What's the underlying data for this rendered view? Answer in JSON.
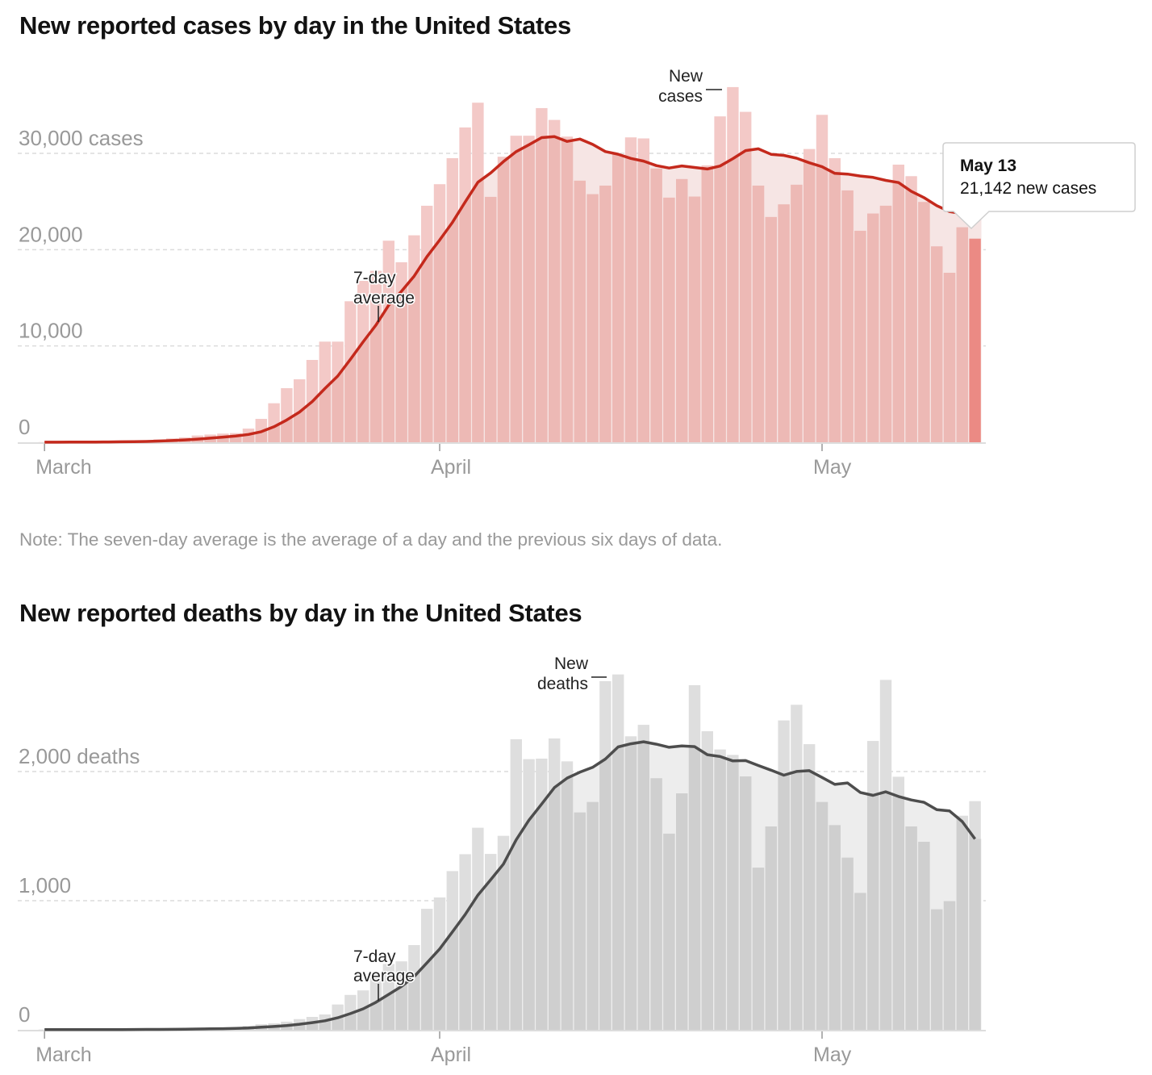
{
  "cases_chart": {
    "title": "New reported cases by day in the United States",
    "note": "Note: The seven-day average is the average of a day and the previous six days of data.",
    "annotations": {
      "bars": [
        "New",
        "cases"
      ],
      "average": [
        "7-day",
        "average"
      ]
    },
    "tooltip": {
      "date": "May 13",
      "value": "21,142 new cases"
    }
  },
  "deaths_chart": {
    "title": "New reported deaths by day in the United States",
    "annotations": {
      "bars": [
        "New",
        "deaths"
      ],
      "average": [
        "7-day",
        "average"
      ]
    }
  },
  "chart_data": [
    {
      "type": "bar",
      "title": "New reported cases by day in the United States",
      "series_line": "7-day average",
      "ylim": [
        0,
        37000
      ],
      "grid": true,
      "yticks": [
        0,
        10000,
        20000,
        30000
      ],
      "ytick_labels": [
        "0",
        "10,000",
        "20,000",
        "30,000 cases"
      ],
      "xtick_labels": [
        "March",
        "April",
        "May"
      ],
      "xtick_dates": [
        "Mar 1",
        "Apr 1",
        "May 1"
      ],
      "highlight": "May 13",
      "colors": {
        "bar": "#f3c9c7",
        "bar_under_avg": "#edb9b5",
        "avg_area": "#f6e5e4",
        "line": "#c4291c",
        "highlight": "#eb8a84"
      },
      "x": [
        "Mar 1",
        "Mar 2",
        "Mar 3",
        "Mar 4",
        "Mar 5",
        "Mar 6",
        "Mar 7",
        "Mar 8",
        "Mar 9",
        "Mar 10",
        "Mar 11",
        "Mar 12",
        "Mar 13",
        "Mar 14",
        "Mar 15",
        "Mar 16",
        "Mar 17",
        "Mar 18",
        "Mar 19",
        "Mar 20",
        "Mar 21",
        "Mar 22",
        "Mar 23",
        "Mar 24",
        "Mar 25",
        "Mar 26",
        "Mar 27",
        "Mar 28",
        "Mar 29",
        "Mar 30",
        "Mar 31",
        "Apr 1",
        "Apr 2",
        "Apr 3",
        "Apr 4",
        "Apr 5",
        "Apr 6",
        "Apr 7",
        "Apr 8",
        "Apr 9",
        "Apr 10",
        "Apr 11",
        "Apr 12",
        "Apr 13",
        "Apr 14",
        "Apr 15",
        "Apr 16",
        "Apr 17",
        "Apr 18",
        "Apr 19",
        "Apr 20",
        "Apr 21",
        "Apr 22",
        "Apr 23",
        "Apr 24",
        "Apr 25",
        "Apr 26",
        "Apr 27",
        "Apr 28",
        "Apr 29",
        "Apr 30",
        "May 1",
        "May 2",
        "May 3",
        "May 4",
        "May 5",
        "May 6",
        "May 7",
        "May 8",
        "May 9",
        "May 10",
        "May 11",
        "May 12",
        "May 13"
      ],
      "values": [
        10,
        15,
        25,
        35,
        60,
        80,
        100,
        120,
        180,
        300,
        400,
        500,
        700,
        800,
        900,
        950,
        1420,
        2430,
        4050,
        5620,
        6540,
        8550,
        10450,
        10450,
        14640,
        16760,
        17800,
        20930,
        18690,
        21490,
        24560,
        26800,
        29500,
        32690,
        35260,
        25480,
        29650,
        31830,
        31830,
        34700,
        33470,
        31740,
        27160,
        25760,
        26650,
        29870,
        31660,
        31550,
        28420,
        25400,
        27330,
        25510,
        28750,
        33840,
        36880,
        34310,
        26650,
        23390,
        24700,
        26740,
        30450,
        34000,
        29500,
        26150,
        21960,
        23750,
        24560,
        28830,
        27630,
        24950,
        20340,
        17600,
        22320,
        21142
      ]
    },
    {
      "type": "bar",
      "title": "New reported deaths by day in the United States",
      "series_line": "7-day average",
      "ylim": [
        0,
        2800
      ],
      "grid": true,
      "yticks": [
        0,
        1000,
        2000
      ],
      "ytick_labels": [
        "0",
        "1,000",
        "2,000 deaths"
      ],
      "xtick_labels": [
        "March",
        "April",
        "May"
      ],
      "xtick_dates": [
        "Mar 1",
        "Apr 1",
        "May 1"
      ],
      "colors": {
        "bar": "#dedede",
        "bar_under_avg": "#cfcfcf",
        "avg_area": "#ededed",
        "line": "#4d4d4d"
      },
      "x": [
        "Mar 1",
        "Mar 2",
        "Mar 3",
        "Mar 4",
        "Mar 5",
        "Mar 6",
        "Mar 7",
        "Mar 8",
        "Mar 9",
        "Mar 10",
        "Mar 11",
        "Mar 12",
        "Mar 13",
        "Mar 14",
        "Mar 15",
        "Mar 16",
        "Mar 17",
        "Mar 18",
        "Mar 19",
        "Mar 20",
        "Mar 21",
        "Mar 22",
        "Mar 23",
        "Mar 24",
        "Mar 25",
        "Mar 26",
        "Mar 27",
        "Mar 28",
        "Mar 29",
        "Mar 30",
        "Mar 31",
        "Apr 1",
        "Apr 2",
        "Apr 3",
        "Apr 4",
        "Apr 5",
        "Apr 6",
        "Apr 7",
        "Apr 8",
        "Apr 9",
        "Apr 10",
        "Apr 11",
        "Apr 12",
        "Apr 13",
        "Apr 14",
        "Apr 15",
        "Apr 16",
        "Apr 17",
        "Apr 18",
        "Apr 19",
        "Apr 20",
        "Apr 21",
        "Apr 22",
        "Apr 23",
        "Apr 24",
        "Apr 25",
        "Apr 26",
        "Apr 27",
        "Apr 28",
        "Apr 29",
        "Apr 30",
        "May 1",
        "May 2",
        "May 3",
        "May 4",
        "May 5",
        "May 6",
        "May 7",
        "May 8",
        "May 9",
        "May 10",
        "May 11",
        "May 12",
        "May 13"
      ],
      "values": [
        1,
        1,
        3,
        2,
        1,
        2,
        3,
        4,
        5,
        5,
        7,
        8,
        10,
        12,
        15,
        20,
        30,
        43,
        50,
        63,
        83,
        100,
        119,
        196,
        270,
        305,
        420,
        510,
        530,
        656,
        937,
        1025,
        1229,
        1360,
        1565,
        1362,
        1502,
        2250,
        2096,
        2100,
        2256,
        2079,
        1683,
        1764,
        2700,
        2752,
        2273,
        2362,
        1948,
        1519,
        1831,
        2669,
        2312,
        2171,
        2129,
        1962,
        1256,
        1575,
        2396,
        2517,
        2212,
        1764,
        1585,
        1333,
        1060,
        2237,
        2710,
        1960,
        1575,
        1456,
        933,
        996,
        1658,
        1771
      ]
    }
  ]
}
